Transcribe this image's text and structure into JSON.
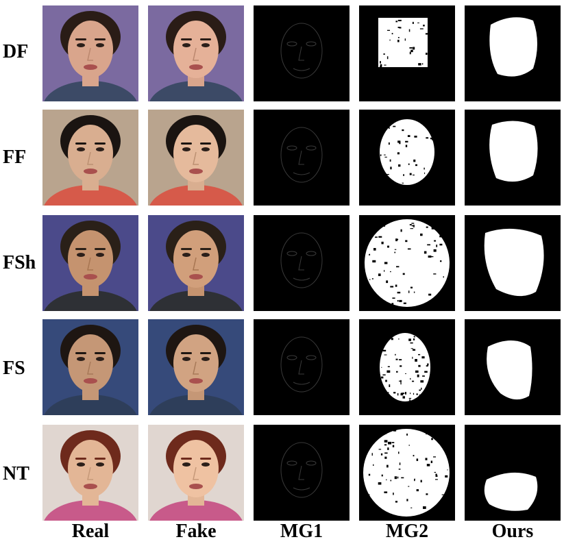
{
  "columns": [
    "Real",
    "Fake",
    "MG1",
    "MG2",
    "Ours"
  ],
  "rows": [
    {
      "label": "DF",
      "bg": "#7b6aa0",
      "skin": "#d9a58c",
      "hair": "#2a1c16",
      "cloth": "#3c4a66"
    },
    {
      "label": "FF",
      "bg": "#b9a48e",
      "skin": "#d9ae90",
      "hair": "#1a1411",
      "cloth": "#d65a4a"
    },
    {
      "label": "FSh",
      "bg": "#4b4a8a",
      "skin": "#c5936f",
      "hair": "#2a2018",
      "cloth": "#2e3035"
    },
    {
      "label": "FS",
      "bg": "#364a7a",
      "skin": "#c59776",
      "hair": "#1e1612",
      "cloth": "#2e3e5a"
    },
    {
      "label": "NT",
      "bg": "#e0d6d0",
      "skin": "#e3b696",
      "hair": "#6e2a1c",
      "cloth": "#c85a8a"
    }
  ]
}
